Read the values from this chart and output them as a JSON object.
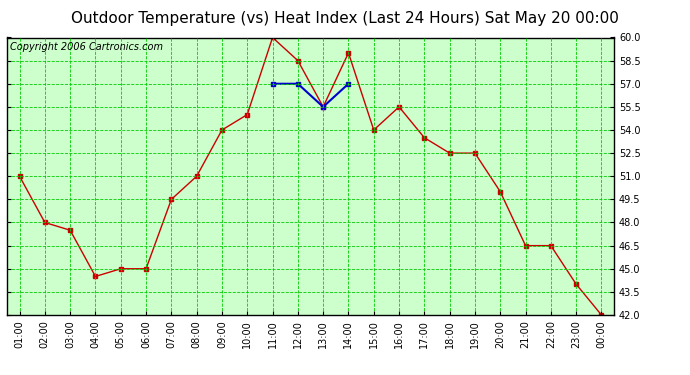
{
  "title": "Outdoor Temperature (vs) Heat Index (Last 24 Hours) Sat May 20 00:00",
  "copyright": "Copyright 2006 Cartronics.com",
  "x_labels": [
    "01:00",
    "02:00",
    "03:00",
    "04:00",
    "05:00",
    "06:00",
    "07:00",
    "08:00",
    "09:00",
    "10:00",
    "11:00",
    "12:00",
    "13:00",
    "14:00",
    "15:00",
    "16:00",
    "17:00",
    "18:00",
    "19:00",
    "20:00",
    "21:00",
    "22:00",
    "23:00",
    "00:00"
  ],
  "temp_values": [
    51.0,
    48.0,
    47.5,
    44.5,
    45.0,
    45.0,
    49.5,
    51.0,
    54.0,
    55.0,
    60.0,
    58.5,
    55.5,
    59.0,
    54.0,
    55.5,
    53.5,
    52.5,
    52.5,
    50.0,
    46.5,
    46.5,
    44.0,
    42.0
  ],
  "heat_values": [
    null,
    null,
    null,
    null,
    null,
    null,
    null,
    null,
    null,
    null,
    57.0,
    57.0,
    55.5,
    57.0,
    null,
    null,
    null,
    null,
    null,
    null,
    null,
    null,
    null,
    null
  ],
  "temp_color": "#cc0000",
  "heat_color": "#0000cc",
  "outer_bg": "#ffffff",
  "plot_bg": "#ccffcc",
  "grid_color": "#00cc00",
  "border_color": "#000000",
  "ylim_min": 42.0,
  "ylim_max": 60.0,
  "ytick_step": 1.5,
  "title_fontsize": 11,
  "copyright_fontsize": 7,
  "tick_fontsize": 7
}
